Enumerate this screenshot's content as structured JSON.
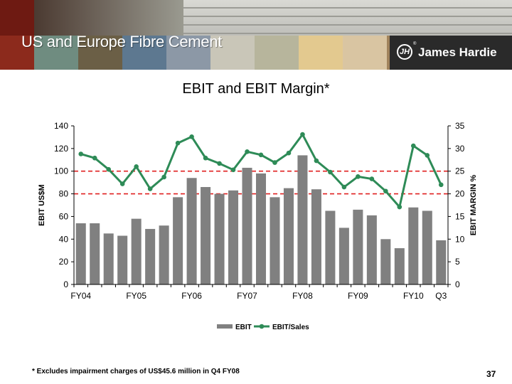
{
  "header": {
    "title": "US and Europe Fibre Cement",
    "brand": "James Hardie",
    "brand_mark": "JH",
    "brand_reg": "®",
    "swatch_colors": [
      "#8c2a1c",
      "#6f8c80",
      "#6b5f46",
      "#5d7890",
      "#8c98a6",
      "#c9c6b8",
      "#b7b59c",
      "#e3c98f",
      "#d9c5a2",
      "#a0835c",
      "#8f6c4c"
    ]
  },
  "chart_data": {
    "type": "bar",
    "title": "EBIT and EBIT Margin*",
    "ylabel": "EBIT US$M",
    "y2label": "EBIT MARGIN %",
    "ylim": [
      0,
      140
    ],
    "y2lim": [
      0,
      35
    ],
    "yticks": [
      0,
      20,
      40,
      60,
      80,
      100,
      120,
      140
    ],
    "y2ticks": [
      0,
      5,
      10,
      15,
      20,
      25,
      30,
      35
    ],
    "x_tick_labels": [
      {
        "label": "FY04",
        "index": 0
      },
      {
        "label": "FY05",
        "index": 4
      },
      {
        "label": "FY06",
        "index": 8
      },
      {
        "label": "FY07",
        "index": 12
      },
      {
        "label": "FY08",
        "index": 16
      },
      {
        "label": "FY09",
        "index": 20
      },
      {
        "label": "FY10",
        "index": 24
      }
    ],
    "annotation": {
      "label": "Q3",
      "index": 26
    },
    "series": [
      {
        "name": "EBIT",
        "type": "bar",
        "axis": "left",
        "color": "#808080",
        "values": [
          54,
          54,
          45,
          43,
          58,
          49,
          52,
          77,
          94,
          86,
          80,
          83,
          103,
          98,
          77,
          85,
          114,
          84,
          65,
          50,
          66,
          61,
          40,
          32,
          68,
          65,
          39
        ]
      },
      {
        "name": "EBIT/Sales",
        "type": "line",
        "axis": "right",
        "color": "#2e8b57",
        "values": [
          28.8,
          27.9,
          25.4,
          22.2,
          26.0,
          21.1,
          23.7,
          31.2,
          32.6,
          27.9,
          26.7,
          25.3,
          29.3,
          28.6,
          26.9,
          29.0,
          33.1,
          27.3,
          24.8,
          21.5,
          23.8,
          23.3,
          20.6,
          17.1,
          30.6,
          28.5,
          22.0
        ]
      }
    ],
    "reference_lines": [
      {
        "axis": "right",
        "value": 25,
        "color": "#e02020",
        "style": "dashed"
      },
      {
        "axis": "right",
        "value": 20,
        "color": "#e02020",
        "style": "dashed"
      }
    ],
    "legend": {
      "position": "bottom",
      "items": [
        "EBIT",
        "EBIT/Sales"
      ]
    }
  },
  "footnote": "* Excludes impairment charges of US$45.6 million in Q4 FY08",
  "page_number": "37"
}
